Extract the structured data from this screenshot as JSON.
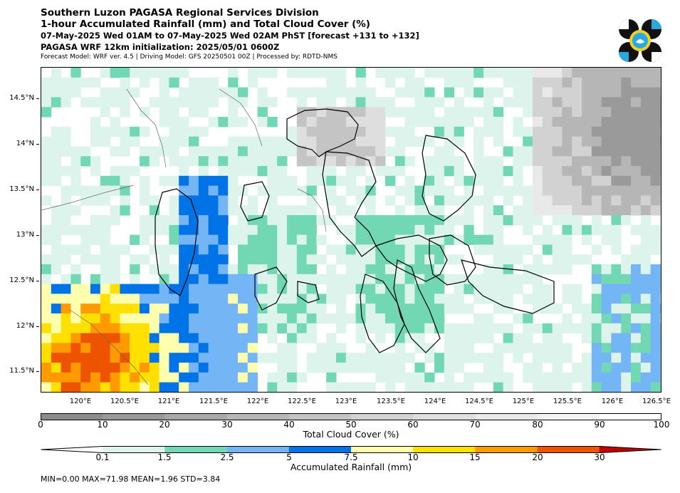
{
  "header": {
    "line1": "Southern Luzon PAGASA Regional Services Division",
    "line2": "1-hour Accumulated Rainfall (mm) and Total Cloud Cover (%)",
    "line3": "07-May-2025 Wed 01AM to 07-May-2025 Wed 02AM PhST [forecast +131 to +132]",
    "line4": "PAGASA WRF 12km initialization: 2025/05/01 0600Z",
    "line5": "Forecast Model: WRF ver. 4.5 | Driving Model: GFS 20250501 00Z | Processed by: RDTD-NMS"
  },
  "map": {
    "lat_ticks": [
      "14.5°N",
      "14°N",
      "13.5°N",
      "13°N",
      "12.5°N",
      "12°N",
      "11.5°N"
    ],
    "lon_ticks": [
      "120°E",
      "120.5°E",
      "121°E",
      "121.5°E",
      "122°E",
      "122.5°E",
      "123°E",
      "123.5°E",
      "124°E",
      "124.5°E",
      "125°E",
      "125.5°E",
      "126°E",
      "126.5°E"
    ]
  },
  "cloud_colorbar": {
    "label": "Total Cloud Cover (%)",
    "ticks": [
      "0",
      "10",
      "20",
      "30",
      "40",
      "50",
      "60",
      "70",
      "80",
      "90",
      "100"
    ],
    "colors": [
      "#8c8c8c",
      "#9a9a9a",
      "#a8a8a8",
      "#b6b6b6",
      "#c4c4c4",
      "#d2d2d2",
      "#dedede",
      "#e9e9e9",
      "#f3f3f3",
      "#ffffff"
    ]
  },
  "rain_colorbar": {
    "label": "Accumulated Rainfall (mm)",
    "ticks": [
      "0.1",
      "1.5",
      "2.5",
      "5",
      "7.5",
      "10",
      "15",
      "20",
      "30"
    ],
    "colors": [
      "#ffffff",
      "#ddf4ec",
      "#72d8b3",
      "#74b5f6",
      "#0073e6",
      "#ffffae",
      "#ffe000",
      "#ff9a00",
      "#ee5400",
      "#c00000"
    ]
  },
  "stats": "MIN=0.00   MAX=71.98   MEAN=1.96   STD=3.84"
}
